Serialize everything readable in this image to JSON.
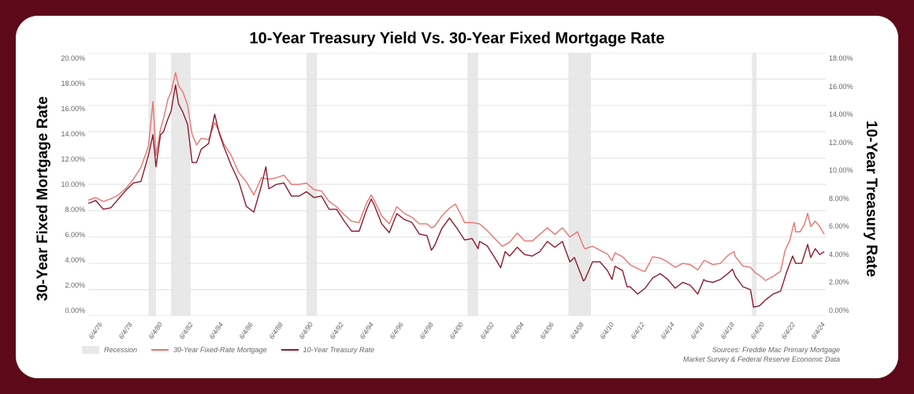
{
  "title": "10-Year Treasury Yield Vs. 30-Year Fixed Mortgage Rate",
  "left_axis_label": "30-Year Fixed Mortgage Rate",
  "right_axis_label": "10-Year Treasury Rate",
  "colors": {
    "page_bg": "#5d0919",
    "card_bg": "#ffffff",
    "grid": "#e5e5e5",
    "recession": "#e8e8e8",
    "mortgage_line": "#e86a6a",
    "treasury_line": "#8b1a2e",
    "text": "#000000",
    "tick_text": "#666666"
  },
  "left_axis": {
    "min": 0,
    "max": 20,
    "step": 2,
    "suffix": "%",
    "decimals": 2
  },
  "right_axis": {
    "min": 0,
    "max": 18,
    "step": 2,
    "suffix": "%",
    "decimals": 2
  },
  "x_range": {
    "start": 1976,
    "end": 2025
  },
  "x_ticks": [
    "6/4/76",
    "6/4/78",
    "6/4/80",
    "6/4/82",
    "6/4/84",
    "6/4/86",
    "6/4/88",
    "6/4/90",
    "6/4/92",
    "6/4/94",
    "6/4/96",
    "6/4/98",
    "6/4/00",
    "6/4/02",
    "6/4/04",
    "6/4/06",
    "6/4/08",
    "6/4/10",
    "6/4/12",
    "6/4/14",
    "6/4/16",
    "6/4/18",
    "6/4/20",
    "6/4/22",
    "6/4/24"
  ],
  "recessions": [
    {
      "start": 1980.0,
      "end": 1980.5
    },
    {
      "start": 1981.5,
      "end": 1982.8
    },
    {
      "start": 1990.5,
      "end": 1991.2
    },
    {
      "start": 2001.2,
      "end": 2001.9
    },
    {
      "start": 2007.9,
      "end": 2009.4
    },
    {
      "start": 2020.1,
      "end": 2020.4
    }
  ],
  "series": {
    "mortgage": {
      "label": "30-Year Fixed-Rate Mortgage",
      "color": "#e8746f",
      "width": 1.4,
      "data": [
        [
          1976.0,
          8.8
        ],
        [
          1976.5,
          9.0
        ],
        [
          1977.0,
          8.7
        ],
        [
          1977.5,
          8.9
        ],
        [
          1978.0,
          9.2
        ],
        [
          1978.5,
          9.7
        ],
        [
          1979.0,
          10.4
        ],
        [
          1979.5,
          11.3
        ],
        [
          1980.0,
          12.9
        ],
        [
          1980.3,
          16.3
        ],
        [
          1980.5,
          12.2
        ],
        [
          1980.8,
          14.2
        ],
        [
          1981.0,
          15.0
        ],
        [
          1981.3,
          16.5
        ],
        [
          1981.5,
          17.0
        ],
        [
          1981.8,
          18.5
        ],
        [
          1982.0,
          17.5
        ],
        [
          1982.3,
          17.0
        ],
        [
          1982.6,
          16.0
        ],
        [
          1982.9,
          13.8
        ],
        [
          1983.2,
          13.0
        ],
        [
          1983.5,
          13.5
        ],
        [
          1984.0,
          13.4
        ],
        [
          1984.4,
          14.7
        ],
        [
          1984.7,
          14.0
        ],
        [
          1985.0,
          13.1
        ],
        [
          1985.5,
          12.2
        ],
        [
          1986.0,
          10.9
        ],
        [
          1986.5,
          10.2
        ],
        [
          1987.0,
          9.2
        ],
        [
          1987.5,
          10.5
        ],
        [
          1988.0,
          10.4
        ],
        [
          1988.5,
          10.5
        ],
        [
          1989.0,
          10.7
        ],
        [
          1989.5,
          10.0
        ],
        [
          1990.0,
          10.0
        ],
        [
          1990.5,
          10.1
        ],
        [
          1991.0,
          9.6
        ],
        [
          1991.5,
          9.5
        ],
        [
          1992.0,
          8.7
        ],
        [
          1992.5,
          8.3
        ],
        [
          1993.0,
          7.7
        ],
        [
          1993.5,
          7.2
        ],
        [
          1994.0,
          7.1
        ],
        [
          1994.5,
          8.6
        ],
        [
          1994.8,
          9.2
        ],
        [
          1995.0,
          8.8
        ],
        [
          1995.5,
          7.6
        ],
        [
          1996.0,
          7.0
        ],
        [
          1996.5,
          8.3
        ],
        [
          1997.0,
          7.8
        ],
        [
          1997.5,
          7.5
        ],
        [
          1998.0,
          7.0
        ],
        [
          1998.5,
          7.0
        ],
        [
          1998.8,
          6.7
        ],
        [
          1999.0,
          6.8
        ],
        [
          1999.5,
          7.6
        ],
        [
          2000.0,
          8.2
        ],
        [
          2000.4,
          8.5
        ],
        [
          2000.8,
          7.6
        ],
        [
          2001.0,
          7.1
        ],
        [
          2001.5,
          7.1
        ],
        [
          2002.0,
          7.0
        ],
        [
          2002.5,
          6.5
        ],
        [
          2003.0,
          5.9
        ],
        [
          2003.5,
          5.3
        ],
        [
          2004.0,
          5.6
        ],
        [
          2004.5,
          6.3
        ],
        [
          2005.0,
          5.7
        ],
        [
          2005.5,
          5.7
        ],
        [
          2006.0,
          6.2
        ],
        [
          2006.5,
          6.7
        ],
        [
          2007.0,
          6.2
        ],
        [
          2007.5,
          6.7
        ],
        [
          2008.0,
          6.0
        ],
        [
          2008.5,
          6.4
        ],
        [
          2008.9,
          5.3
        ],
        [
          2009.0,
          5.1
        ],
        [
          2009.5,
          5.3
        ],
        [
          2010.0,
          5.0
        ],
        [
          2010.5,
          4.7
        ],
        [
          2010.8,
          4.2
        ],
        [
          2011.0,
          4.8
        ],
        [
          2011.5,
          4.5
        ],
        [
          2012.0,
          3.9
        ],
        [
          2012.5,
          3.6
        ],
        [
          2012.9,
          3.4
        ],
        [
          2013.0,
          3.4
        ],
        [
          2013.5,
          4.5
        ],
        [
          2014.0,
          4.4
        ],
        [
          2014.5,
          4.1
        ],
        [
          2015.0,
          3.7
        ],
        [
          2015.5,
          4.0
        ],
        [
          2016.0,
          3.9
        ],
        [
          2016.5,
          3.5
        ],
        [
          2016.9,
          4.2
        ],
        [
          2017.0,
          4.2
        ],
        [
          2017.5,
          3.9
        ],
        [
          2018.0,
          4.0
        ],
        [
          2018.5,
          4.6
        ],
        [
          2018.9,
          4.9
        ],
        [
          2019.0,
          4.5
        ],
        [
          2019.5,
          3.8
        ],
        [
          2020.0,
          3.7
        ],
        [
          2020.3,
          3.3
        ],
        [
          2020.7,
          3.0
        ],
        [
          2021.0,
          2.7
        ],
        [
          2021.5,
          3.0
        ],
        [
          2022.0,
          3.4
        ],
        [
          2022.3,
          5.0
        ],
        [
          2022.6,
          5.7
        ],
        [
          2022.9,
          7.1
        ],
        [
          2023.0,
          6.4
        ],
        [
          2023.3,
          6.4
        ],
        [
          2023.6,
          7.0
        ],
        [
          2023.8,
          7.8
        ],
        [
          2024.0,
          6.8
        ],
        [
          2024.3,
          7.2
        ],
        [
          2024.6,
          6.8
        ],
        [
          2024.9,
          6.2
        ]
      ]
    },
    "treasury": {
      "label": "10-Year Treasury Rate",
      "color": "#8b1a2e",
      "width": 1.4,
      "data": [
        [
          1976.0,
          7.7
        ],
        [
          1976.5,
          7.9
        ],
        [
          1977.0,
          7.3
        ],
        [
          1977.5,
          7.4
        ],
        [
          1978.0,
          8.0
        ],
        [
          1978.5,
          8.6
        ],
        [
          1979.0,
          9.1
        ],
        [
          1979.5,
          9.2
        ],
        [
          1980.0,
          11.0
        ],
        [
          1980.3,
          12.4
        ],
        [
          1980.5,
          10.2
        ],
        [
          1980.8,
          12.4
        ],
        [
          1981.0,
          12.6
        ],
        [
          1981.3,
          13.5
        ],
        [
          1981.5,
          14.0
        ],
        [
          1981.8,
          15.8
        ],
        [
          1982.0,
          14.5
        ],
        [
          1982.3,
          13.9
        ],
        [
          1982.6,
          13.1
        ],
        [
          1982.9,
          10.5
        ],
        [
          1983.2,
          10.5
        ],
        [
          1983.5,
          11.4
        ],
        [
          1984.0,
          11.8
        ],
        [
          1984.4,
          13.8
        ],
        [
          1984.7,
          12.5
        ],
        [
          1985.0,
          11.6
        ],
        [
          1985.5,
          10.3
        ],
        [
          1986.0,
          9.2
        ],
        [
          1986.5,
          7.5
        ],
        [
          1987.0,
          7.1
        ],
        [
          1987.5,
          8.9
        ],
        [
          1987.8,
          10.2
        ],
        [
          1988.0,
          8.7
        ],
        [
          1988.5,
          9.0
        ],
        [
          1989.0,
          9.1
        ],
        [
          1989.5,
          8.2
        ],
        [
          1990.0,
          8.2
        ],
        [
          1990.5,
          8.5
        ],
        [
          1991.0,
          8.1
        ],
        [
          1991.5,
          8.2
        ],
        [
          1992.0,
          7.3
        ],
        [
          1992.5,
          7.3
        ],
        [
          1993.0,
          6.5
        ],
        [
          1993.5,
          5.8
        ],
        [
          1994.0,
          5.8
        ],
        [
          1994.5,
          7.3
        ],
        [
          1994.8,
          8.0
        ],
        [
          1995.0,
          7.6
        ],
        [
          1995.5,
          6.3
        ],
        [
          1996.0,
          5.7
        ],
        [
          1996.5,
          7.0
        ],
        [
          1997.0,
          6.6
        ],
        [
          1997.5,
          6.4
        ],
        [
          1998.0,
          5.6
        ],
        [
          1998.5,
          5.5
        ],
        [
          1998.8,
          4.5
        ],
        [
          1999.0,
          4.8
        ],
        [
          1999.5,
          6.0
        ],
        [
          2000.0,
          6.7
        ],
        [
          2000.5,
          6.0
        ],
        [
          2001.0,
          5.2
        ],
        [
          2001.5,
          5.3
        ],
        [
          2001.9,
          4.6
        ],
        [
          2002.0,
          5.1
        ],
        [
          2002.5,
          4.8
        ],
        [
          2003.0,
          4.0
        ],
        [
          2003.4,
          3.3
        ],
        [
          2003.7,
          4.4
        ],
        [
          2004.0,
          4.1
        ],
        [
          2004.5,
          4.7
        ],
        [
          2005.0,
          4.2
        ],
        [
          2005.5,
          4.1
        ],
        [
          2006.0,
          4.4
        ],
        [
          2006.5,
          5.1
        ],
        [
          2007.0,
          4.7
        ],
        [
          2007.5,
          5.1
        ],
        [
          2008.0,
          3.7
        ],
        [
          2008.3,
          4.0
        ],
        [
          2008.9,
          2.4
        ],
        [
          2009.0,
          2.5
        ],
        [
          2009.5,
          3.7
        ],
        [
          2010.0,
          3.7
        ],
        [
          2010.5,
          3.1
        ],
        [
          2010.8,
          2.5
        ],
        [
          2011.0,
          3.4
        ],
        [
          2011.5,
          3.1
        ],
        [
          2011.8,
          2.0
        ],
        [
          2012.0,
          2.0
        ],
        [
          2012.5,
          1.5
        ],
        [
          2013.0,
          1.9
        ],
        [
          2013.5,
          2.6
        ],
        [
          2014.0,
          2.9
        ],
        [
          2014.5,
          2.5
        ],
        [
          2015.0,
          1.9
        ],
        [
          2015.5,
          2.3
        ],
        [
          2016.0,
          2.1
        ],
        [
          2016.5,
          1.5
        ],
        [
          2016.9,
          2.5
        ],
        [
          2017.0,
          2.4
        ],
        [
          2017.5,
          2.3
        ],
        [
          2018.0,
          2.5
        ],
        [
          2018.5,
          2.9
        ],
        [
          2018.8,
          3.2
        ],
        [
          2019.0,
          2.7
        ],
        [
          2019.5,
          2.0
        ],
        [
          2020.0,
          1.8
        ],
        [
          2020.2,
          0.6
        ],
        [
          2020.6,
          0.7
        ],
        [
          2021.0,
          1.1
        ],
        [
          2021.5,
          1.5
        ],
        [
          2022.0,
          1.7
        ],
        [
          2022.4,
          3.0
        ],
        [
          2022.8,
          4.1
        ],
        [
          2023.0,
          3.6
        ],
        [
          2023.4,
          3.6
        ],
        [
          2023.8,
          4.9
        ],
        [
          2024.0,
          4.0
        ],
        [
          2024.3,
          4.6
        ],
        [
          2024.6,
          4.2
        ],
        [
          2024.9,
          4.4
        ]
      ]
    }
  },
  "legend": {
    "recession": "Recession",
    "mortgage": "30-Year Fixed-Rate Mortgage",
    "treasury": "10-Year Treasury Rate"
  },
  "sources": "Sources: Freddie Mac Primary Mortgage\nMarket Survey & Federal Reserve Economic Data"
}
